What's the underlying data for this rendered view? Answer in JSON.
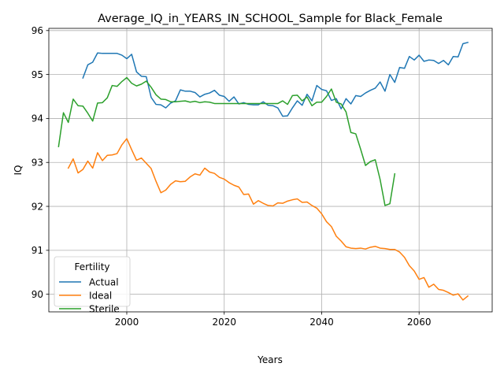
{
  "chart_data": {
    "type": "line",
    "title": "Average_IQ_in_YEARS_IN_SCHOOL_Sample for Black_Female",
    "xlabel": "Years",
    "ylabel": "IQ",
    "xlim": [
      1984,
      2075
    ],
    "ylim": [
      89.6,
      96.05
    ],
    "xticks": [
      2000,
      2020,
      2040,
      2060
    ],
    "yticks": [
      90,
      91,
      92,
      93,
      94,
      95,
      96
    ],
    "grid": true,
    "legend": {
      "title": "Fertility",
      "placement": "lower-left"
    },
    "series": [
      {
        "name": "Actual",
        "color": "#1f77b4",
        "x": [
          1991,
          1992,
          1993,
          1994,
          1995,
          1996,
          1997,
          1998,
          1999,
          2000,
          2001,
          2002,
          2003,
          2004,
          2005,
          2006,
          2007,
          2008,
          2009,
          2010,
          2011,
          2012,
          2013,
          2014,
          2015,
          2016,
          2017,
          2018,
          2019,
          2020,
          2021,
          2022,
          2023,
          2024,
          2025,
          2026,
          2027,
          2028,
          2029,
          2030,
          2031,
          2032,
          2033,
          2034,
          2035,
          2036,
          2037,
          2038,
          2039,
          2040,
          2041,
          2042,
          2043,
          2044,
          2045,
          2046,
          2047,
          2048,
          2049,
          2050,
          2051,
          2052,
          2053,
          2054,
          2055,
          2056,
          2057,
          2058,
          2059,
          2060,
          2061,
          2062,
          2063,
          2064,
          2065,
          2066,
          2067,
          2068,
          2069,
          2070
        ],
        "y": [
          94.92,
          95.22,
          95.28,
          95.49,
          95.48,
          95.48,
          95.48,
          95.48,
          95.44,
          95.36,
          95.46,
          95.06,
          94.96,
          94.95,
          94.48,
          94.32,
          94.31,
          94.24,
          94.35,
          94.4,
          94.65,
          94.62,
          94.62,
          94.59,
          94.49,
          94.55,
          94.58,
          94.64,
          94.53,
          94.5,
          94.39,
          94.49,
          94.33,
          94.36,
          94.32,
          94.31,
          94.31,
          94.38,
          94.3,
          94.29,
          94.24,
          94.05,
          94.06,
          94.24,
          94.4,
          94.3,
          94.55,
          94.4,
          94.75,
          94.66,
          94.63,
          94.41,
          94.45,
          94.22,
          94.45,
          94.33,
          94.52,
          94.5,
          94.58,
          94.64,
          94.69,
          94.83,
          94.62,
          95.0,
          94.82,
          95.16,
          95.14,
          95.41,
          95.33,
          95.44,
          95.3,
          95.33,
          95.32,
          95.25,
          95.32,
          95.22,
          95.41,
          95.4,
          95.7,
          95.73
        ]
      },
      {
        "name": "Ideal",
        "color": "#ff7f0e",
        "x": [
          1988,
          1989,
          1990,
          1991,
          1992,
          1993,
          1994,
          1995,
          1996,
          1997,
          1998,
          1999,
          2000,
          2001,
          2002,
          2003,
          2004,
          2005,
          2006,
          2007,
          2008,
          2009,
          2010,
          2011,
          2012,
          2013,
          2014,
          2015,
          2016,
          2017,
          2018,
          2019,
          2020,
          2021,
          2022,
          2023,
          2024,
          2025,
          2026,
          2027,
          2028,
          2029,
          2030,
          2031,
          2032,
          2033,
          2034,
          2035,
          2036,
          2037,
          2038,
          2039,
          2040,
          2041,
          2042,
          2043,
          2044,
          2045,
          2046,
          2047,
          2048,
          2049,
          2050,
          2051,
          2052,
          2053,
          2054,
          2055,
          2056,
          2057,
          2058,
          2059,
          2060,
          2061,
          2062,
          2063,
          2064,
          2065,
          2066,
          2067,
          2068,
          2069,
          2070
        ],
        "y": [
          92.87,
          93.08,
          92.76,
          92.84,
          93.03,
          92.87,
          93.22,
          93.04,
          93.16,
          93.17,
          93.2,
          93.4,
          93.54,
          93.29,
          93.05,
          93.1,
          92.98,
          92.86,
          92.57,
          92.31,
          92.37,
          92.5,
          92.58,
          92.56,
          92.57,
          92.67,
          92.74,
          92.71,
          92.87,
          92.78,
          92.75,
          92.66,
          92.62,
          92.54,
          92.48,
          92.44,
          92.27,
          92.28,
          92.05,
          92.13,
          92.07,
          92.02,
          92.01,
          92.08,
          92.07,
          92.12,
          92.15,
          92.17,
          92.09,
          92.1,
          92.02,
          91.96,
          91.83,
          91.65,
          91.54,
          91.32,
          91.21,
          91.08,
          91.05,
          91.04,
          91.05,
          91.03,
          91.07,
          91.09,
          91.05,
          91.04,
          91.02,
          91.02,
          90.96,
          90.84,
          90.65,
          90.53,
          90.34,
          90.38,
          90.16,
          90.23,
          90.11,
          90.09,
          90.04,
          89.98,
          90.01,
          89.87,
          89.96
        ]
      },
      {
        "name": "Sterile",
        "color": "#2ca02c",
        "x": [
          1986,
          1987,
          1988,
          1989,
          1990,
          1991,
          1992,
          1993,
          1994,
          1995,
          1996,
          1997,
          1998,
          1999,
          2000,
          2001,
          2002,
          2003,
          2004,
          2005,
          2006,
          2007,
          2008,
          2009,
          2010,
          2011,
          2012,
          2013,
          2014,
          2015,
          2016,
          2017,
          2018,
          2019,
          2020,
          2021,
          2022,
          2023,
          2024,
          2025,
          2026,
          2027,
          2028,
          2029,
          2030,
          2031,
          2032,
          2033,
          2034,
          2035,
          2036,
          2037,
          2038,
          2039,
          2040,
          2041,
          2042,
          2043,
          2044,
          2045,
          2046,
          2047,
          2048,
          2049,
          2050,
          2051,
          2052,
          2053,
          2054,
          2055
        ],
        "y": [
          93.36,
          94.13,
          93.91,
          94.44,
          94.29,
          94.28,
          94.12,
          93.94,
          94.35,
          94.36,
          94.47,
          94.75,
          94.73,
          94.84,
          94.93,
          94.8,
          94.74,
          94.78,
          94.85,
          94.71,
          94.54,
          94.44,
          94.43,
          94.38,
          94.38,
          94.39,
          94.4,
          94.37,
          94.39,
          94.36,
          94.38,
          94.37,
          94.34,
          94.34,
          94.34,
          94.34,
          94.34,
          94.34,
          94.34,
          94.34,
          94.34,
          94.34,
          94.34,
          94.34,
          94.34,
          94.34,
          94.4,
          94.32,
          94.52,
          94.53,
          94.4,
          94.49,
          94.29,
          94.37,
          94.37,
          94.5,
          94.67,
          94.37,
          94.33,
          94.15,
          93.68,
          93.65,
          93.3,
          92.93,
          93.02,
          93.06,
          92.61,
          92.02,
          92.06,
          92.74
        ]
      }
    ]
  }
}
